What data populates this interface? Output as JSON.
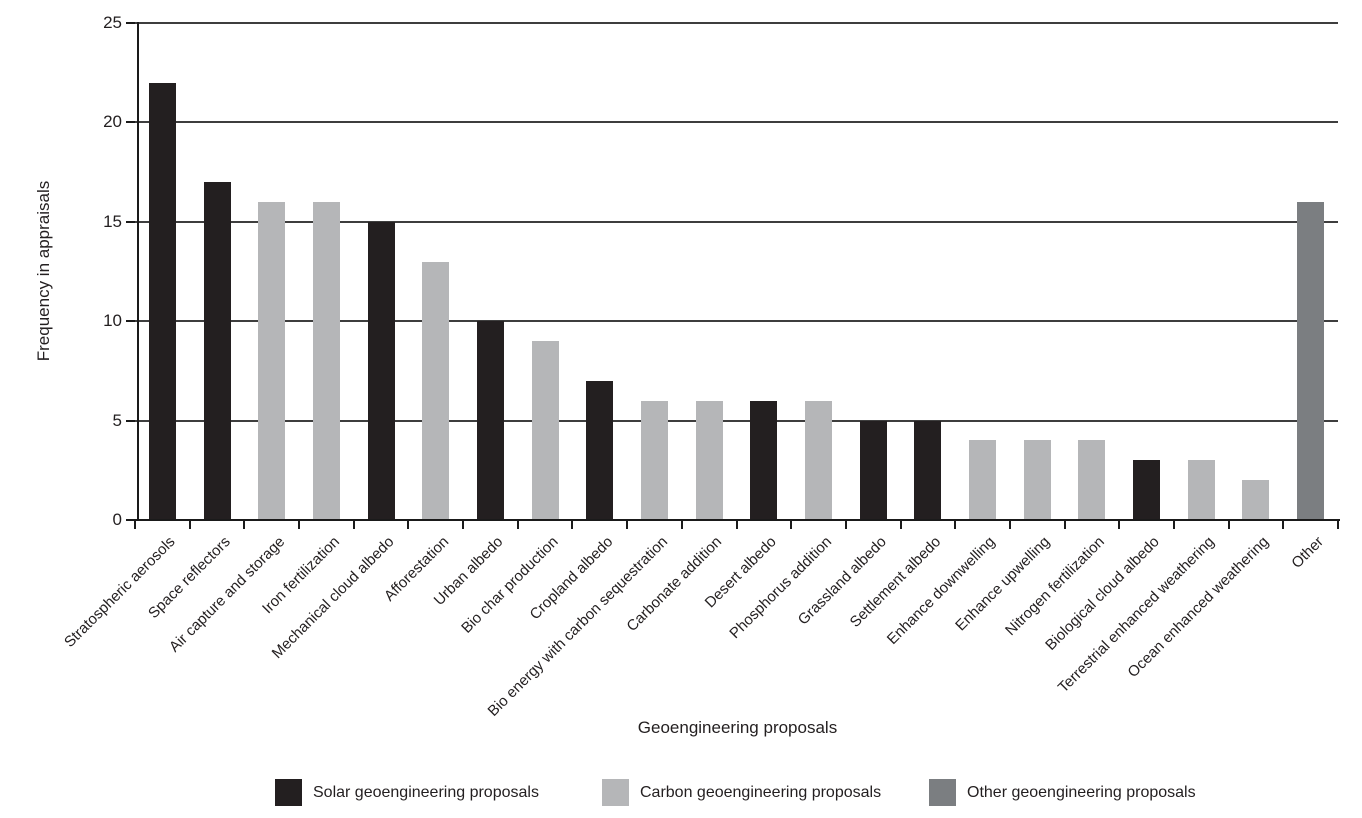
{
  "chart_data": {
    "type": "bar",
    "title": "",
    "xlabel": "Geoengineering proposals",
    "ylabel": "Frequency in appraisals",
    "ylim": [
      0,
      25
    ],
    "yticks": [
      0,
      5,
      10,
      15,
      20,
      25
    ],
    "grid": "horizontal",
    "legend_position": "bottom",
    "categories": [
      "Stratospheric aerosols",
      "Space reflectors",
      "Air capture and storage",
      "Iron fertilization",
      "Mechanical cloud albedo",
      "Afforestation",
      "Urban albedo",
      "Bio char production",
      "Cropland albedo",
      "Bio energy with carbon sequestration",
      "Carbonate addition",
      "Desert albedo",
      "Phosphorus addition",
      "Grassland albedo",
      "Settlement albedo",
      "Enhance downwelling",
      "Enhance upwelling",
      "Nitrogen fertilization",
      "Biological cloud albedo",
      "Terrestrial enhanced weathering",
      "Ocean enhanced weathering",
      "Other"
    ],
    "values": [
      22,
      17,
      16,
      16,
      15,
      13,
      10,
      9,
      7,
      6,
      6,
      6,
      6,
      5,
      5,
      4,
      4,
      4,
      3,
      3,
      2,
      16
    ],
    "groups": [
      "solar",
      "solar",
      "carbon",
      "carbon",
      "solar",
      "carbon",
      "solar",
      "carbon",
      "solar",
      "carbon",
      "carbon",
      "solar",
      "carbon",
      "solar",
      "solar",
      "carbon",
      "carbon",
      "carbon",
      "solar",
      "carbon",
      "carbon",
      "other"
    ],
    "colors": {
      "solar": "#231f20",
      "carbon": "#b5b6b8",
      "other": "#7b7e81"
    },
    "legend": [
      {
        "label": "Solar geoengineering proposals",
        "color": "#231f20"
      },
      {
        "label": "Carbon geoengineering proposals",
        "color": "#b5b6b8"
      },
      {
        "label": "Other geoengineering proposals",
        "color": "#7b7e81"
      }
    ]
  }
}
